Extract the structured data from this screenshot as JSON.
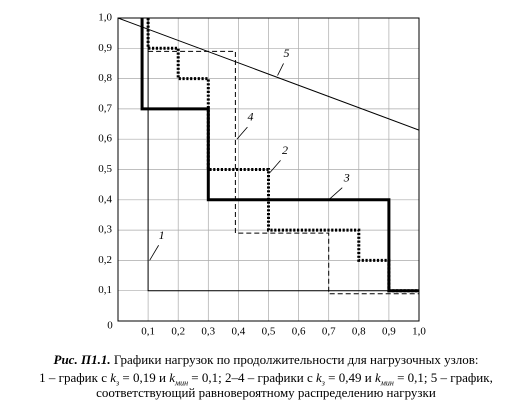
{
  "chart_data": {
    "type": "line",
    "xlim": [
      0,
      1
    ],
    "ylim": [
      0,
      1
    ],
    "xticks": [
      0,
      {
        "value": 0.1,
        "label": "0,1"
      },
      {
        "value": 0.2,
        "label": "0,2"
      },
      {
        "value": 0.3,
        "label": "0,3"
      },
      {
        "value": 0.4,
        "label": "0,4"
      },
      {
        "value": 0.5,
        "label": "0,5"
      },
      {
        "value": 0.6,
        "label": "0,6"
      },
      {
        "value": 0.7,
        "label": "0,7"
      },
      {
        "value": 0.8,
        "label": "0,8"
      },
      {
        "value": 0.9,
        "label": "0,9"
      },
      {
        "value": 1,
        "label": "1,0"
      }
    ],
    "yticks": [
      {
        "value": 0.1,
        "label": "0,1"
      },
      {
        "value": 0.2,
        "label": "0,2"
      },
      {
        "value": 0.3,
        "label": "0,3"
      },
      {
        "value": 0.4,
        "label": "0,4"
      },
      {
        "value": 0.5,
        "label": "0,5"
      },
      {
        "value": 0.6,
        "label": "0,6"
      },
      {
        "value": 0.7,
        "label": "0,7"
      },
      {
        "value": 0.8,
        "label": "0,8"
      },
      {
        "value": 0.9,
        "label": "0,9"
      },
      {
        "value": 1,
        "label": "1,0"
      }
    ],
    "grid": true,
    "series": [
      {
        "name": "1",
        "color": "#000",
        "style": "solid",
        "weight": "thin",
        "x": [
          0.1,
          0.1,
          1.0
        ],
        "values": [
          1.0,
          0.1,
          0.1
        ]
      },
      {
        "name": "2",
        "color": "#000",
        "style": "dotted",
        "weight": "thick",
        "x": [
          0.1,
          0.1,
          0.2,
          0.2,
          0.3,
          0.3,
          0.5,
          0.5,
          0.8,
          0.8,
          0.9,
          0.9,
          1.0
        ],
        "values": [
          1.0,
          0.9,
          0.9,
          0.8,
          0.8,
          0.5,
          0.5,
          0.3,
          0.3,
          0.2,
          0.2,
          0.1,
          0.1
        ]
      },
      {
        "name": "3",
        "color": "#000",
        "style": "solid",
        "weight": "thick",
        "x": [
          0.08,
          0.08,
          0.3,
          0.3,
          0.9,
          0.9,
          1.0
        ],
        "values": [
          1.0,
          0.7,
          0.7,
          0.4,
          0.4,
          0.1,
          0.1
        ]
      },
      {
        "name": "4",
        "color": "#000",
        "style": "dashed",
        "weight": "thin",
        "x": [
          0.1,
          0.39,
          0.39,
          0.7,
          0.7,
          1.0
        ],
        "values": [
          0.89,
          0.89,
          0.29,
          0.29,
          0.09,
          0.09
        ]
      },
      {
        "name": "5",
        "color": "#000",
        "style": "solid",
        "weight": "thin",
        "x": [
          0,
          1
        ],
        "values": [
          1.0,
          0.63
        ]
      }
    ],
    "caption": {
      "label": "Рис. П1.1.",
      "title": " Графики нагрузок по продолжительности для нагрузочных узлов:",
      "line2": [
        "1 – график с ",
        "k",
        "з",
        " = 0,19 и ",
        "k",
        "мин",
        " = 0,1; 2–4 – графики с ",
        "k",
        "з",
        " = 0,49 и ",
        "k",
        "мин",
        " = 0,1; 5 – график,"
      ],
      "line3": "соответствующий равновероятному распределению нагрузки"
    }
  }
}
